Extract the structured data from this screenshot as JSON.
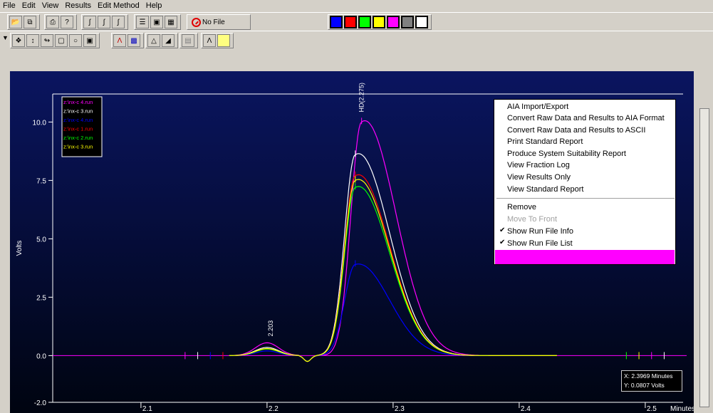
{
  "menubar": [
    "File",
    "Edit",
    "View",
    "Results",
    "Edit Method",
    "Help"
  ],
  "toolbar1": {
    "buttons": [
      "open-icon",
      "copy-icon",
      "print-icon",
      "help-icon",
      "integrate-icon",
      "integrate-events-icon",
      "manual-integrate-icon",
      "list-icon",
      "overlay-icon",
      "compare-icon"
    ],
    "no_file_label": "No File",
    "color_swatches": [
      "#0000ff",
      "#ff0000",
      "#00ff00",
      "#ffff00",
      "#ff00ff",
      "#808080",
      "#ffffff"
    ]
  },
  "toolbar2": {
    "marker": "▼",
    "buttons": [
      "zoom-icon",
      "cursor-icon",
      "link-icon",
      "zoom-box-icon",
      "zoom-out-icon",
      "fit-icon",
      "peak-icon",
      "color-grid-icon",
      "baseline-icon",
      "area-icon",
      "report-icon",
      "peak-shape-icon",
      "highlight-icon"
    ]
  },
  "chart_data": {
    "type": "line",
    "title": "",
    "xlabel": "Minutes",
    "ylabel": "Volts",
    "xlim": [
      2.03,
      2.53
    ],
    "ylim": [
      -2.0,
      11.2
    ],
    "xticks": [
      2.1,
      2.2,
      2.3,
      2.4,
      2.5
    ],
    "xtick_labels": [
      "2.1",
      "2.2",
      "2.3",
      "2.4",
      "2.5"
    ],
    "yticks": [
      -2.0,
      0.0,
      2.5,
      5.0,
      7.5,
      10.0
    ],
    "ytick_labels": [
      "-2.0",
      "0.0",
      "2.5",
      "5.0",
      "7.5",
      "10.0"
    ],
    "series": [
      {
        "name": "z:\\nx-c 4.run",
        "color": "#ff00ff",
        "peak_x": 2.275,
        "peak_y": 10.0,
        "small_peak_y": 0.55
      },
      {
        "name": "z:\\nx-c 3.run",
        "color": "#ffffff",
        "peak_x": 2.27,
        "peak_y": 8.6,
        "small_peak_y": 0.35
      },
      {
        "name": "z:\\nx-c 4.run",
        "color": "#0000ff",
        "peak_x": 2.27,
        "peak_y": 3.9,
        "small_peak_y": 0.2
      },
      {
        "name": "z:\\nx-c 1.run",
        "color": "#ff0000",
        "peak_x": 2.27,
        "peak_y": 7.7,
        "small_peak_y": 0.3
      },
      {
        "name": "z:\\nx-c 2.run",
        "color": "#00ff00",
        "peak_x": 2.27,
        "peak_y": 7.2,
        "small_peak_y": 0.28
      },
      {
        "name": "z:\\nx-c 3.run",
        "color": "#ffff00",
        "peak_x": 2.27,
        "peak_y": 7.5,
        "small_peak_y": 0.3
      }
    ],
    "annotations": [
      {
        "text": "2.203",
        "x": 2.203
      },
      {
        "text": "HD(2.275)",
        "x": 2.275
      }
    ],
    "grid": false,
    "legend": "top-left"
  },
  "context_menu": {
    "items": [
      {
        "label": "AIA Import/Export",
        "checked": false,
        "enabled": true
      },
      {
        "label": "Convert Raw Data and Results to AIA Format",
        "checked": false,
        "enabled": true
      },
      {
        "label": "Convert Raw Data and Results to ASCII",
        "checked": false,
        "enabled": true
      },
      {
        "label": "Print Standard Report",
        "checked": false,
        "enabled": true
      },
      {
        "label": "Produce System Suitability Report",
        "checked": false,
        "enabled": true
      },
      {
        "label": "View Fraction Log",
        "checked": false,
        "enabled": true
      },
      {
        "label": "View Results Only",
        "checked": false,
        "enabled": true
      },
      {
        "label": "View Standard Report",
        "checked": false,
        "enabled": true
      },
      {
        "label": "Remove",
        "checked": false,
        "enabled": true
      },
      {
        "label": "Move To Front",
        "checked": false,
        "enabled": false
      },
      {
        "label": "Show Run File Info",
        "checked": true,
        "enabled": true
      },
      {
        "label": "Show Run File List",
        "checked": true,
        "enabled": true
      }
    ],
    "highlight_color": "#ff00ff"
  },
  "readout": {
    "x_text": "X: 2.3969 Minutes",
    "y_text": "Y: 0.0807 Volts"
  }
}
